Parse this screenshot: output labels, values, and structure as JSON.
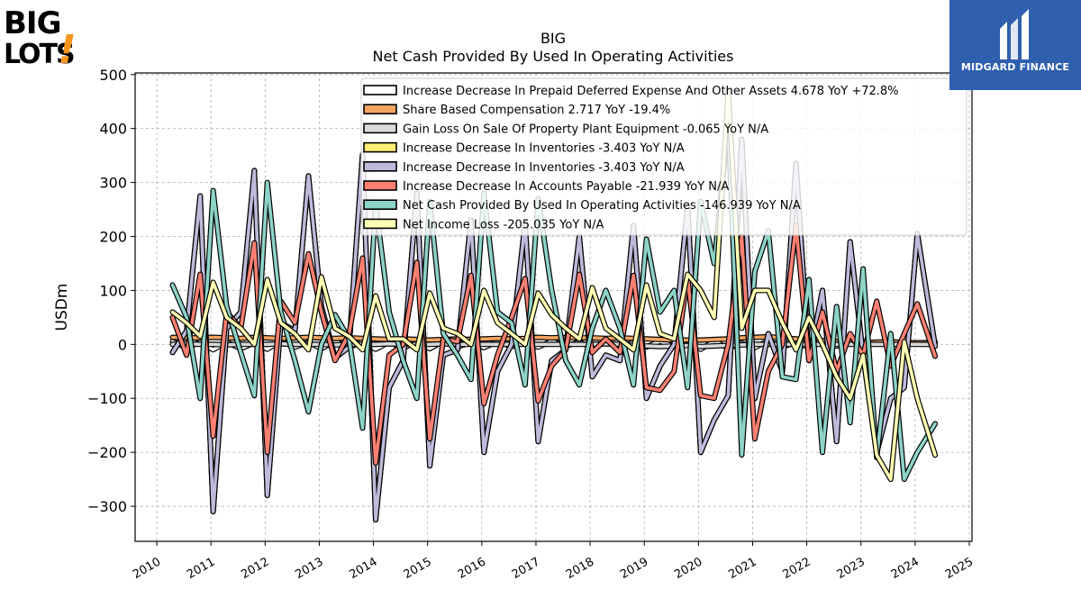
{
  "logos": {
    "left_lines": [
      "BIG",
      "LOTS"
    ],
    "left_mark": "!",
    "right_text": "MIDGARD FINANCE"
  },
  "colors": {
    "prepaid": "#ffffff",
    "share_comp": "#f4a460",
    "gain_loss": "#d9d9d9",
    "inventories_yellow": "#ffed6f",
    "inventories_purple": "#bebada",
    "accounts_payable": "#fb8072",
    "net_cash": "#8dd3c7",
    "net_income": "#ffffb3",
    "logo_orange": "#f7941d",
    "logo_blue": "#2f5fae"
  },
  "chart_data": {
    "type": "line",
    "title": "BIG",
    "subtitle": "Net Cash Provided By Used In Operating Activities",
    "ylabel": "USDm",
    "xlabel": "",
    "xlim": [
      2009.6,
      2025.05
    ],
    "ylim": [
      -365,
      503
    ],
    "yticks": [
      -300,
      -200,
      -100,
      0,
      100,
      200,
      300,
      400,
      500
    ],
    "ytick_labels": [
      "−300",
      "−200",
      "−100",
      "0",
      "100",
      "200",
      "300",
      "400",
      "500"
    ],
    "xticks": [
      2010,
      2011,
      2012,
      2013,
      2014,
      2015,
      2016,
      2017,
      2018,
      2019,
      2020,
      2021,
      2022,
      2023,
      2024,
      2025
    ],
    "xtick_labels": [
      "2010",
      "2011",
      "2012",
      "2013",
      "2014",
      "2015",
      "2016",
      "2017",
      "2018",
      "2019",
      "2020",
      "2021",
      "2022",
      "2023",
      "2024",
      "2025"
    ],
    "grid": true,
    "legend_position": "top-right",
    "x": [
      2010.29,
      2010.55,
      2010.8,
      2011.04,
      2011.29,
      2011.55,
      2011.8,
      2012.04,
      2012.29,
      2012.55,
      2012.8,
      2013.04,
      2013.29,
      2013.55,
      2013.8,
      2014.04,
      2014.29,
      2014.55,
      2014.8,
      2015.04,
      2015.29,
      2015.55,
      2015.8,
      2016.04,
      2016.29,
      2016.55,
      2016.8,
      2017.04,
      2017.29,
      2017.55,
      2017.8,
      2018.04,
      2018.29,
      2018.55,
      2018.8,
      2019.04,
      2019.29,
      2019.55,
      2019.8,
      2020.04,
      2020.29,
      2020.55,
      2020.8,
      2021.04,
      2021.29,
      2021.55,
      2021.8,
      2022.04,
      2022.29,
      2022.55,
      2022.8,
      2023.04,
      2023.29,
      2023.55,
      2023.8,
      2024.04,
      2024.37
    ],
    "series": [
      {
        "name": "Increase Decrease In Prepaid Deferred Expense And Other Assets",
        "legend_text": "Increase Decrease In Prepaid Deferred Expense And Other Assets  4.678 YoY +72.8%",
        "color": "#ffffff",
        "values": [
          5,
          -6,
          4,
          -10,
          4,
          -8,
          3,
          -9,
          6,
          -5,
          4,
          -8,
          6,
          -6,
          5,
          -9,
          4,
          -7,
          5,
          -8,
          6,
          -5,
          4,
          -6,
          5,
          -4,
          3,
          -5,
          6,
          -3,
          4,
          -6,
          5,
          -4,
          3,
          -5,
          6,
          -4,
          5,
          -9,
          6,
          -7,
          2,
          -6,
          7,
          -5,
          4,
          -6,
          5,
          -3,
          4,
          -2,
          3,
          -1,
          4,
          2,
          4.678
        ]
      },
      {
        "name": "Share Based Compensation",
        "legend_text": "Share Based Compensation  2.717 YoY -19.4%",
        "color": "#f4a460",
        "values": [
          13,
          12,
          12,
          13,
          12,
          11,
          13,
          12,
          11,
          12,
          13,
          12,
          11,
          12,
          11,
          10,
          9,
          10,
          9,
          8,
          9,
          10,
          9,
          10,
          11,
          10,
          11,
          13,
          12,
          13,
          12,
          12,
          11,
          12,
          11,
          10,
          9,
          8,
          8,
          8,
          9,
          10,
          12,
          13,
          14,
          12,
          10,
          8,
          7,
          5,
          4,
          3,
          4,
          5,
          3,
          3,
          2.717
        ]
      },
      {
        "name": "Gain Loss On Sale Of Property Plant Equipment",
        "legend_text": "Gain Loss On Sale Of Property Plant Equipment  -0.065 YoY N/A",
        "color": "#d9d9d9",
        "values": [
          0,
          1,
          0,
          0,
          -1,
          0,
          0,
          0,
          1,
          0,
          0,
          0,
          -1,
          0,
          0,
          0,
          1,
          0,
          0,
          0,
          1,
          0,
          0,
          0,
          0,
          0,
          0,
          0,
          0,
          0,
          0,
          0,
          1,
          0,
          -2,
          -3,
          -4,
          -3,
          -2,
          -4,
          -3,
          -2,
          -1,
          0,
          0,
          0,
          0,
          0,
          0,
          0,
          0,
          0,
          0,
          0,
          0,
          0,
          -0.065
        ]
      },
      {
        "name": "Increase Decrease In Inventories",
        "legend_text": "Increase Decrease In Inventories  -3.403 YoY N/A",
        "color": "#ffed6f",
        "values": [
          -15,
          25,
          275,
          -310,
          30,
          60,
          322,
          -280,
          40,
          25,
          312,
          70,
          -25,
          -5,
          352,
          -325,
          -80,
          -30,
          280,
          -225,
          -20,
          -10,
          230,
          -200,
          -50,
          0,
          225,
          -180,
          -30,
          -10,
          200,
          -60,
          -20,
          -30,
          220,
          -100,
          -40,
          0,
          255,
          -200,
          -140,
          -95,
          380,
          -100,
          20,
          -50,
          335,
          -30,
          100,
          -180,
          190,
          -20,
          -200,
          -100,
          -80,
          205,
          -3.403
        ]
      },
      {
        "name": "Increase Decrease In Inventories",
        "legend_text": "Increase Decrease In Inventories  -3.403 YoY N/A",
        "color": "#bebada",
        "values": [
          -15,
          25,
          275,
          -310,
          30,
          60,
          322,
          -280,
          40,
          25,
          312,
          70,
          -25,
          -5,
          352,
          -325,
          -80,
          -30,
          280,
          -225,
          -20,
          -10,
          230,
          -200,
          -50,
          0,
          225,
          -180,
          -30,
          -10,
          200,
          -60,
          -20,
          -30,
          220,
          -100,
          -40,
          0,
          255,
          -200,
          -140,
          -95,
          380,
          -100,
          20,
          -50,
          335,
          -30,
          100,
          -180,
          190,
          -20,
          -200,
          -100,
          -80,
          205,
          -3.403
        ]
      },
      {
        "name": "Increase Decrease In Accounts Payable",
        "legend_text": "Increase Decrease In Accounts Payable  -21.939 YoY N/A",
        "color": "#fb8072",
        "values": [
          50,
          -20,
          130,
          -170,
          60,
          30,
          188,
          -200,
          80,
          40,
          168,
          60,
          -30,
          20,
          160,
          -220,
          -20,
          0,
          152,
          -175,
          10,
          5,
          128,
          -110,
          -20,
          50,
          122,
          -105,
          -40,
          -10,
          130,
          -15,
          10,
          -15,
          128,
          -80,
          -85,
          -50,
          125,
          -95,
          -100,
          0,
          200,
          -175,
          -50,
          0,
          220,
          -30,
          60,
          -50,
          20,
          -20,
          80,
          -40,
          20,
          75,
          -21.939
        ]
      },
      {
        "name": "Net Cash Provided By Used In Operating Activities",
        "legend_text": "Net Cash Provided By Used In Operating Activities  -146.939 YoY N/A",
        "color": "#8dd3c7",
        "values": [
          110,
          50,
          -100,
          285,
          70,
          -15,
          -95,
          300,
          60,
          -30,
          -125,
          0,
          55,
          10,
          -155,
          260,
          60,
          -30,
          -100,
          265,
          20,
          -20,
          -65,
          280,
          60,
          40,
          -75,
          270,
          100,
          -30,
          -75,
          30,
          100,
          30,
          -75,
          195,
          60,
          100,
          -80,
          265,
          150,
          410,
          -205,
          135,
          210,
          -60,
          -65,
          120,
          -200,
          70,
          -145,
          140,
          -210,
          20,
          -250,
          -200,
          -146.939
        ]
      },
      {
        "name": "Net Income Loss",
        "legend_text": "Net Income Loss  -205.035 YoY N/A",
        "color": "#ffffb3",
        "values": [
          60,
          40,
          15,
          115,
          50,
          30,
          0,
          120,
          40,
          20,
          -10,
          125,
          30,
          15,
          -10,
          90,
          10,
          10,
          -10,
          95,
          30,
          20,
          0,
          100,
          40,
          20,
          0,
          95,
          55,
          30,
          10,
          105,
          30,
          10,
          -10,
          110,
          20,
          10,
          130,
          100,
          50,
          470,
          30,
          100,
          100,
          40,
          -10,
          50,
          0,
          -60,
          -100,
          -20,
          -205,
          -250,
          5,
          -100,
          -205.035
        ]
      }
    ]
  }
}
